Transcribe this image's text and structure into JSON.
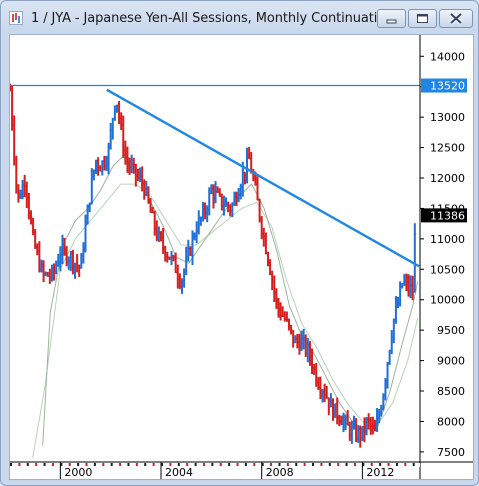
{
  "window": {
    "title": "1 / JYA - Japanese Yen-All Sessions, Monthly Continuation"
  },
  "icons": {
    "app": "chart-app-icon",
    "minimize": "minimize-icon",
    "maximize": "maximize-icon",
    "close": "close-icon"
  },
  "colors": {
    "up_bar": "#1f6fd6",
    "down_bar": "#d81d1d",
    "trendline": "#1f86e6",
    "horizontal_line": "#1f86e6",
    "ma_fast": "#9ab59a",
    "ma_slow": "#b8d2b8",
    "last_price_bg": "#000000",
    "level_label_bg": "#1f86e6"
  },
  "chart_data": {
    "type": "candlestick",
    "symbol": "JYA",
    "timeframe": "Monthly",
    "ylim": [
      7350,
      14350
    ],
    "y_ticks": [
      14000,
      13500,
      13000,
      12500,
      12000,
      11500,
      11000,
      10500,
      10000,
      9500,
      9000,
      8500,
      8000,
      7500
    ],
    "y_tick_labels": [
      "14000",
      "13500",
      "13000",
      "12500",
      "12000",
      "11500",
      "11000",
      "10500",
      "10000",
      "9500",
      "9000",
      "8500",
      "8000",
      "7500"
    ],
    "x_range": [
      1998.0,
      2014.25
    ],
    "x_ticks": [
      2000,
      2004,
      2008,
      2012
    ],
    "x_tick_labels": [
      "2000",
      "2004",
      "2008",
      "2012"
    ],
    "price_path": [
      [
        1998.0,
        13450
      ],
      [
        1998.3,
        11600
      ],
      [
        1998.6,
        12000
      ],
      [
        1998.9,
        11000
      ],
      [
        1999.3,
        10400
      ],
      [
        1999.7,
        10400
      ],
      [
        2000.0,
        10800
      ],
      [
        2000.4,
        10700
      ],
      [
        2000.8,
        10500
      ],
      [
        2001.0,
        11200
      ],
      [
        2001.2,
        11800
      ],
      [
        2001.4,
        12300
      ],
      [
        2001.6,
        12200
      ],
      [
        2001.9,
        12400
      ],
      [
        2002.2,
        13400
      ],
      [
        2002.4,
        12800
      ],
      [
        2002.6,
        12300
      ],
      [
        2002.9,
        12100
      ],
      [
        2003.3,
        11900
      ],
      [
        2003.6,
        11400
      ],
      [
        2003.9,
        11000
      ],
      [
        2004.2,
        10800
      ],
      [
        2004.5,
        10600
      ],
      [
        2004.8,
        10300
      ],
      [
        2005.0,
        10600
      ],
      [
        2005.4,
        11200
      ],
      [
        2005.7,
        11400
      ],
      [
        2006.0,
        11800
      ],
      [
        2006.4,
        11600
      ],
      [
        2006.8,
        11500
      ],
      [
        2007.2,
        12000
      ],
      [
        2007.5,
        12300
      ],
      [
        2007.7,
        11900
      ],
      [
        2008.0,
        11200
      ],
      [
        2008.3,
        10600
      ],
      [
        2008.6,
        9900
      ],
      [
        2008.9,
        9700
      ],
      [
        2009.3,
        9300
      ],
      [
        2009.6,
        9300
      ],
      [
        2009.9,
        9100
      ],
      [
        2010.2,
        8700
      ],
      [
        2010.5,
        8500
      ],
      [
        2010.8,
        8200
      ],
      [
        2011.1,
        8100
      ],
      [
        2011.4,
        7900
      ],
      [
        2011.7,
        7800
      ],
      [
        2012.0,
        7800
      ],
      [
        2012.2,
        8000
      ],
      [
        2012.5,
        7800
      ],
      [
        2012.8,
        8400
      ],
      [
        2013.0,
        9000
      ],
      [
        2013.2,
        9600
      ],
      [
        2013.4,
        9900
      ],
      [
        2013.6,
        10300
      ],
      [
        2013.8,
        10200
      ],
      [
        2014.0,
        10150
      ],
      [
        2014.05,
        10700
      ],
      [
        2014.12,
        11386
      ]
    ],
    "ma_fast": [
      [
        1999.3,
        7600
      ],
      [
        1999.6,
        9800
      ],
      [
        2000.1,
        10900
      ],
      [
        2000.6,
        11300
      ],
      [
        2001.1,
        11500
      ],
      [
        2001.6,
        11800
      ],
      [
        2002.1,
        12200
      ],
      [
        2002.6,
        12400
      ],
      [
        2003.1,
        12100
      ],
      [
        2003.6,
        11600
      ],
      [
        2004.1,
        11200
      ],
      [
        2004.6,
        10700
      ],
      [
        2005.1,
        10600
      ],
      [
        2005.6,
        10900
      ],
      [
        2006.1,
        11200
      ],
      [
        2006.6,
        11500
      ],
      [
        2007.1,
        11700
      ],
      [
        2007.6,
        11900
      ],
      [
        2008.1,
        11500
      ],
      [
        2008.6,
        10800
      ],
      [
        2009.1,
        9900
      ],
      [
        2009.6,
        9400
      ],
      [
        2010.1,
        9100
      ],
      [
        2010.6,
        8700
      ],
      [
        2011.1,
        8300
      ],
      [
        2011.6,
        8000
      ],
      [
        2012.1,
        7850
      ],
      [
        2012.6,
        7900
      ],
      [
        2013.1,
        8500
      ],
      [
        2013.6,
        9300
      ],
      [
        2014.0,
        9900
      ],
      [
        2014.2,
        10300
      ]
    ],
    "ma_slow": [
      [
        1998.9,
        7400
      ],
      [
        1999.4,
        8600
      ],
      [
        2000.0,
        10500
      ],
      [
        2000.6,
        11000
      ],
      [
        2001.2,
        11300
      ],
      [
        2001.8,
        11600
      ],
      [
        2002.4,
        11900
      ],
      [
        2003.0,
        11900
      ],
      [
        2003.6,
        11700
      ],
      [
        2004.2,
        11300
      ],
      [
        2004.8,
        10900
      ],
      [
        2005.4,
        10900
      ],
      [
        2006.0,
        11100
      ],
      [
        2006.6,
        11300
      ],
      [
        2007.2,
        11500
      ],
      [
        2007.8,
        11600
      ],
      [
        2008.4,
        11200
      ],
      [
        2009.0,
        10300
      ],
      [
        2009.6,
        9600
      ],
      [
        2010.2,
        9200
      ],
      [
        2010.8,
        8700
      ],
      [
        2011.4,
        8300
      ],
      [
        2012.0,
        8000
      ],
      [
        2012.6,
        7950
      ],
      [
        2013.2,
        8300
      ],
      [
        2013.8,
        9000
      ],
      [
        2014.2,
        9700
      ]
    ],
    "trendline": {
      "from": [
        2001.85,
        13450
      ],
      "to": [
        2014.25,
        10550
      ]
    },
    "horizontal_level": 13520,
    "horizontal_level_label": "13520",
    "last_price": 11386,
    "last_price_label": "11386"
  }
}
